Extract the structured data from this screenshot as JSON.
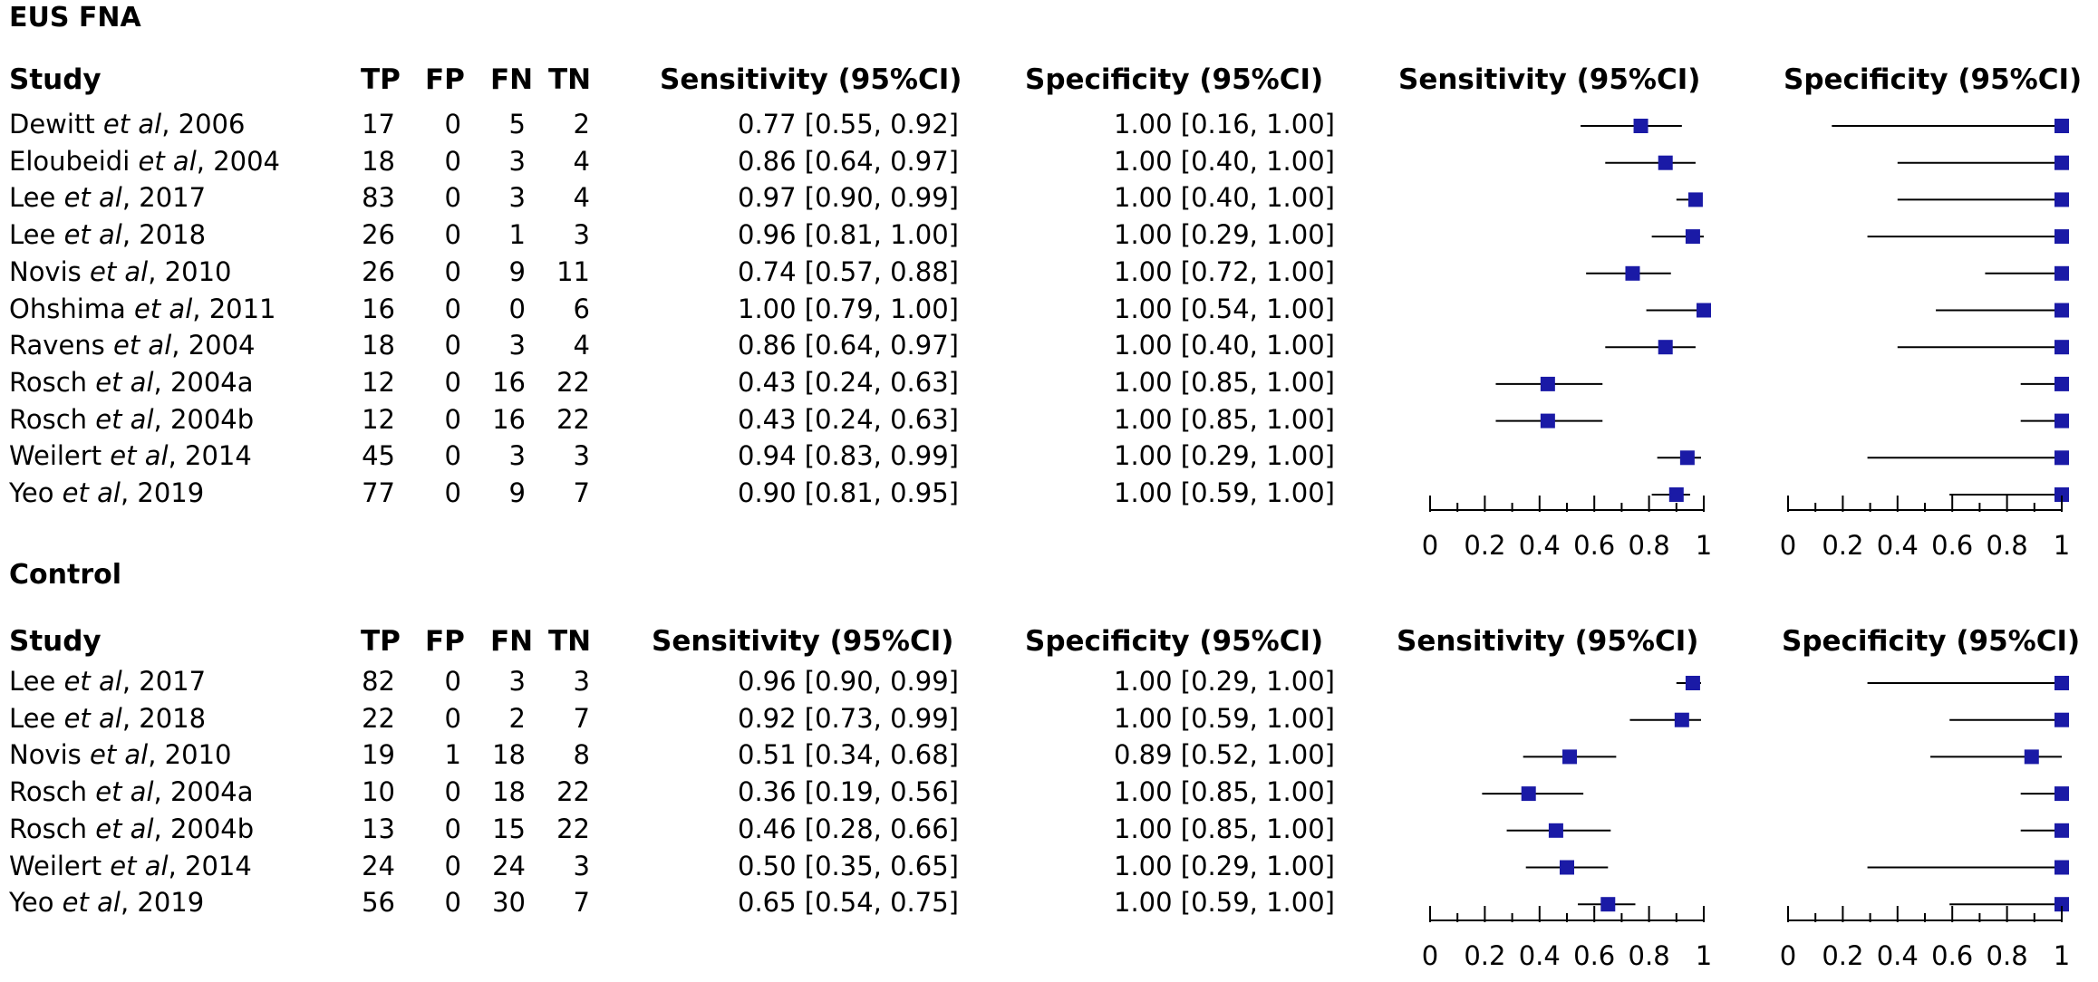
{
  "sections": [
    {
      "title": "EUS FNA",
      "headers": {
        "study": "Study",
        "tp": "TP",
        "fp": "FP",
        "fn": "FN",
        "tn": "TN",
        "sens": "Sensitivity (95%CI)",
        "spec": "Specificity (95%CI)",
        "plot_sens": "Sensitivity (95%CI)",
        "plot_spec": "Specificity (95%CI)"
      },
      "axis_ticks": [
        "0",
        "0.2",
        "0.4",
        "0.6",
        "0.8",
        "1"
      ],
      "rows": [
        {
          "author": "Dewitt ",
          "etal": "et al",
          "year": ", 2006",
          "tp": "17",
          "fp": "0",
          "fn": "5",
          "tn": "2",
          "sens_text": "0.77 [0.55, 0.92]",
          "spec_text": "1.00 [0.16, 1.00]"
        },
        {
          "author": "Eloubeidi ",
          "etal": "et al",
          "year": ", 2004",
          "tp": "18",
          "fp": "0",
          "fn": "3",
          "tn": "4",
          "sens_text": "0.86 [0.64, 0.97]",
          "spec_text": "1.00 [0.40, 1.00]"
        },
        {
          "author": "Lee ",
          "etal": "et al",
          "year": ", 2017",
          "tp": "83",
          "fp": "0",
          "fn": "3",
          "tn": "4",
          "sens_text": "0.97 [0.90, 0.99]",
          "spec_text": "1.00 [0.40, 1.00]"
        },
        {
          "author": "Lee ",
          "etal": "et al",
          "year": ", 2018",
          "tp": "26",
          "fp": "0",
          "fn": "1",
          "tn": "3",
          "sens_text": "0.96 [0.81, 1.00]",
          "spec_text": "1.00 [0.29, 1.00]"
        },
        {
          "author": "Novis ",
          "etal": "et al",
          "year": ", 2010",
          "tp": "26",
          "fp": "0",
          "fn": "9",
          "tn": "11",
          "sens_text": "0.74 [0.57, 0.88]",
          "spec_text": "1.00 [0.72, 1.00]"
        },
        {
          "author": "Ohshima ",
          "etal": "et al",
          "year": ", 2011",
          "tp": "16",
          "fp": "0",
          "fn": "0",
          "tn": "6",
          "sens_text": "1.00 [0.79, 1.00]",
          "spec_text": "1.00 [0.54, 1.00]"
        },
        {
          "author": "Ravens ",
          "etal": "et al",
          "year": ", 2004",
          "tp": "18",
          "fp": "0",
          "fn": "3",
          "tn": "4",
          "sens_text": "0.86 [0.64, 0.97]",
          "spec_text": "1.00 [0.40, 1.00]"
        },
        {
          "author": "Rosch ",
          "etal": "et al",
          "year": ", 2004a",
          "tp": "12",
          "fp": "0",
          "fn": "16",
          "tn": "22",
          "sens_text": "0.43 [0.24, 0.63]",
          "spec_text": "1.00 [0.85, 1.00]"
        },
        {
          "author": "Rosch ",
          "etal": "et al",
          "year": ", 2004b",
          "tp": "12",
          "fp": "0",
          "fn": "16",
          "tn": "22",
          "sens_text": "0.43 [0.24, 0.63]",
          "spec_text": "1.00 [0.85, 1.00]"
        },
        {
          "author": "Weilert ",
          "etal": "et al",
          "year": ", 2014",
          "tp": "45",
          "fp": "0",
          "fn": "3",
          "tn": "3",
          "sens_text": "0.94 [0.83, 0.99]",
          "spec_text": "1.00 [0.29, 1.00]"
        },
        {
          "author": "Yeo ",
          "etal": "et al",
          "year": ", 2019",
          "tp": "77",
          "fp": "0",
          "fn": "9",
          "tn": "7",
          "sens_text": "0.90 [0.81, 0.95]",
          "spec_text": "1.00 [0.59, 1.00]"
        }
      ]
    },
    {
      "title": "Control",
      "headers": {
        "study": "Study",
        "tp": "TP",
        "fp": "FP",
        "fn": "FN",
        "tn": "TN",
        "sens": "Sensitivity (95%CI)",
        "spec": "Specificity (95%CI)",
        "plot_sens": "Sensitivity (95%CI)",
        "plot_spec": "Specificity (95%CI)"
      },
      "axis_ticks": [
        "0",
        "0.2",
        "0.4",
        "0.6",
        "0.8",
        "1"
      ],
      "rows": [
        {
          "author": "Lee ",
          "etal": "et al",
          "year": ", 2017",
          "tp": "82",
          "fp": "0",
          "fn": "3",
          "tn": "3",
          "sens_text": "0.96 [0.90, 0.99]",
          "spec_text": "1.00 [0.29, 1.00]"
        },
        {
          "author": "Lee ",
          "etal": "et al",
          "year": ", 2018",
          "tp": "22",
          "fp": "0",
          "fn": "2",
          "tn": "7",
          "sens_text": "0.92 [0.73, 0.99]",
          "spec_text": "1.00 [0.59, 1.00]"
        },
        {
          "author": "Novis ",
          "etal": "et al",
          "year": ", 2010",
          "tp": "19",
          "fp": "1",
          "fn": "18",
          "tn": "8",
          "sens_text": "0.51 [0.34, 0.68]",
          "spec_text": "0.89 [0.52, 1.00]"
        },
        {
          "author": "Rosch ",
          "etal": "et al",
          "year": ", 2004a",
          "tp": "10",
          "fp": "0",
          "fn": "18",
          "tn": "22",
          "sens_text": "0.36 [0.19, 0.56]",
          "spec_text": "1.00 [0.85, 1.00]"
        },
        {
          "author": "Rosch ",
          "etal": "et al",
          "year": ", 2004b",
          "tp": "13",
          "fp": "0",
          "fn": "15",
          "tn": "22",
          "sens_text": "0.46 [0.28, 0.66]",
          "spec_text": "1.00 [0.85, 1.00]"
        },
        {
          "author": "Weilert ",
          "etal": "et al",
          "year": ", 2014",
          "tp": "24",
          "fp": "0",
          "fn": "24",
          "tn": "3",
          "sens_text": "0.50 [0.35, 0.65]",
          "spec_text": "1.00 [0.29, 1.00]"
        },
        {
          "author": "Yeo ",
          "etal": "et al",
          "year": ", 2019",
          "tp": "56",
          "fp": "0",
          "fn": "30",
          "tn": "7",
          "sens_text": "0.65 [0.54, 0.75]",
          "spec_text": "1.00 [0.59, 1.00]"
        }
      ]
    }
  ],
  "chart_data": {
    "type": "forest",
    "marker_color": "#1a1aa6",
    "xlim": [
      0,
      1
    ],
    "panels": [
      {
        "section": "EUS FNA",
        "sensitivity": [
          [
            0.77,
            0.55,
            0.92
          ],
          [
            0.86,
            0.64,
            0.97
          ],
          [
            0.97,
            0.9,
            0.99
          ],
          [
            0.96,
            0.81,
            1.0
          ],
          [
            0.74,
            0.57,
            0.88
          ],
          [
            1.0,
            0.79,
            1.0
          ],
          [
            0.86,
            0.64,
            0.97
          ],
          [
            0.43,
            0.24,
            0.63
          ],
          [
            0.43,
            0.24,
            0.63
          ],
          [
            0.94,
            0.83,
            0.99
          ],
          [
            0.9,
            0.81,
            0.95
          ]
        ],
        "specificity": [
          [
            1.0,
            0.16,
            1.0
          ],
          [
            1.0,
            0.4,
            1.0
          ],
          [
            1.0,
            0.4,
            1.0
          ],
          [
            1.0,
            0.29,
            1.0
          ],
          [
            1.0,
            0.72,
            1.0
          ],
          [
            1.0,
            0.54,
            1.0
          ],
          [
            1.0,
            0.4,
            1.0
          ],
          [
            1.0,
            0.85,
            1.0
          ],
          [
            1.0,
            0.85,
            1.0
          ],
          [
            1.0,
            0.29,
            1.0
          ],
          [
            1.0,
            0.59,
            1.0
          ]
        ]
      },
      {
        "section": "Control",
        "sensitivity": [
          [
            0.96,
            0.9,
            0.99
          ],
          [
            0.92,
            0.73,
            0.99
          ],
          [
            0.51,
            0.34,
            0.68
          ],
          [
            0.36,
            0.19,
            0.56
          ],
          [
            0.46,
            0.28,
            0.66
          ],
          [
            0.5,
            0.35,
            0.65
          ],
          [
            0.65,
            0.54,
            0.75
          ]
        ],
        "specificity": [
          [
            1.0,
            0.29,
            1.0
          ],
          [
            1.0,
            0.59,
            1.0
          ],
          [
            0.89,
            0.52,
            1.0
          ],
          [
            1.0,
            0.85,
            1.0
          ],
          [
            1.0,
            0.85,
            1.0
          ],
          [
            1.0,
            0.29,
            1.0
          ],
          [
            1.0,
            0.59,
            1.0
          ]
        ]
      }
    ]
  }
}
